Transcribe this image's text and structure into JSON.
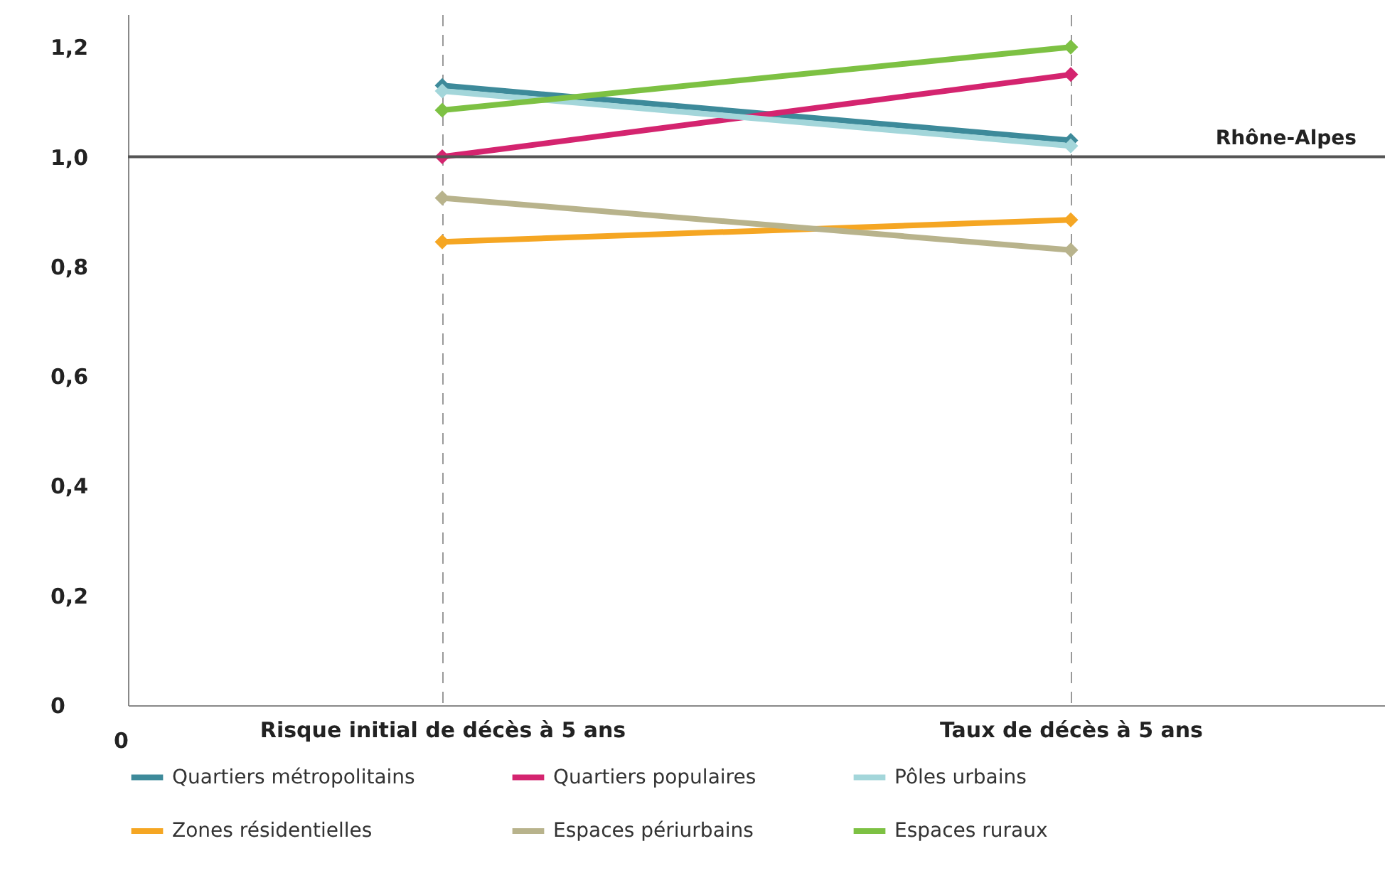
{
  "chart_data": {
    "type": "line",
    "categories": [
      "Risque initial de décès à 5 ans",
      "Taux de décès à 5 ans"
    ],
    "series": [
      {
        "name": "Quartiers métropolitains",
        "color": "#3d8a9a",
        "values": [
          1.13,
          1.03
        ]
      },
      {
        "name": "Quartiers populaires",
        "color": "#d4246f",
        "values": [
          1.0,
          1.15
        ]
      },
      {
        "name": "Pôles urbains",
        "color": "#a3d6da",
        "values": [
          1.12,
          1.02
        ]
      },
      {
        "name": "Zones résidentielles",
        "color": "#f5a623",
        "values": [
          0.845,
          0.885
        ]
      },
      {
        "name": "Espaces périurbains",
        "color": "#b8b38c",
        "values": [
          0.925,
          0.83
        ]
      },
      {
        "name": "Espaces ruraux",
        "color": "#7dc143",
        "values": [
          1.085,
          1.2
        ]
      }
    ],
    "ylim": [
      0,
      1.26
    ],
    "yticks": [
      {
        "value": 0,
        "label": "0"
      },
      {
        "value": 0.2,
        "label": "0,2"
      },
      {
        "value": 0.4,
        "label": "0,4"
      },
      {
        "value": 0.6,
        "label": "0,6"
      },
      {
        "value": 0.8,
        "label": "0,8"
      },
      {
        "value": 1,
        "label": "1,0"
      },
      {
        "value": 1.2,
        "label": "1,2"
      }
    ],
    "ref_lines": [
      {
        "axis": "y",
        "value": 1,
        "label": "Rhône-Alpes",
        "color": "#555555"
      }
    ],
    "annotations": [
      "0"
    ],
    "grid": "x",
    "legend": "bottom",
    "marker": "diamond",
    "line_style": "solid"
  }
}
